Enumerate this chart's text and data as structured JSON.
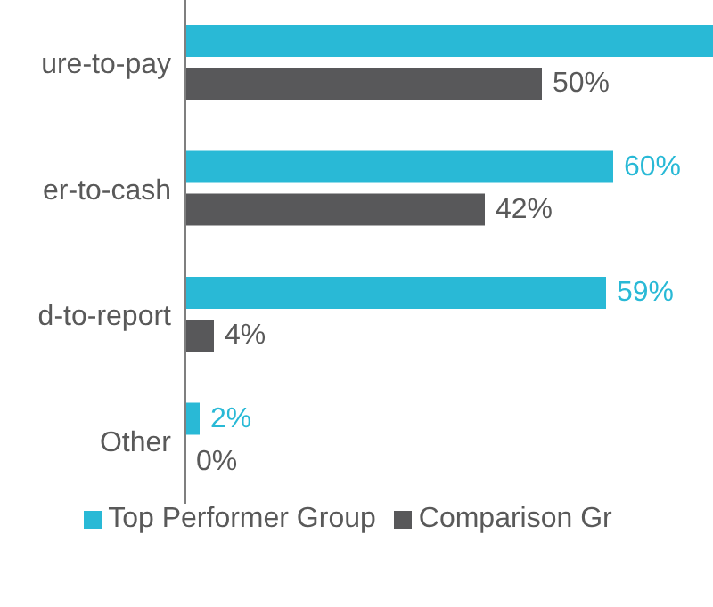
{
  "chart_data": {
    "type": "bar",
    "orientation": "horizontal",
    "categories": [
      "ure-to-pay",
      "er-to-cash",
      "d-to-report",
      "Other"
    ],
    "series": [
      {
        "name": "Top Performer Group",
        "color": "#29b9d6",
        "values": [
          74,
          60,
          59,
          2
        ],
        "value_labels": [
          null,
          "60%",
          "59%",
          "2%"
        ]
      },
      {
        "name": "Comparison Gr",
        "color": "#58585a",
        "values": [
          50,
          42,
          4,
          0
        ],
        "value_labels": [
          "50%",
          "42%",
          "4%",
          "0%"
        ]
      }
    ],
    "legend": "bottom"
  }
}
